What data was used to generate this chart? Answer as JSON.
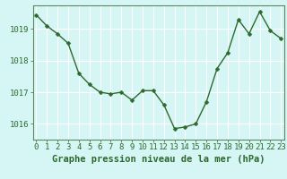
{
  "x": [
    0,
    1,
    2,
    3,
    4,
    5,
    6,
    7,
    8,
    9,
    10,
    11,
    12,
    13,
    14,
    15,
    16,
    17,
    18,
    19,
    20,
    21,
    22,
    23
  ],
  "y": [
    1019.45,
    1019.1,
    1018.85,
    1018.55,
    1017.6,
    1017.25,
    1017.0,
    1016.95,
    1017.0,
    1016.75,
    1017.05,
    1017.05,
    1016.6,
    1015.85,
    1015.9,
    1016.0,
    1016.7,
    1017.75,
    1018.25,
    1019.3,
    1018.85,
    1019.55,
    1018.95,
    1018.7
  ],
  "line_color": "#2d6a2d",
  "marker_color": "#2d6a2d",
  "bg_color": "#d6f5f5",
  "grid_color": "#ffffff",
  "axis_color": "#5a8a5a",
  "tick_color": "#2d6a2d",
  "xlabel": "Graphe pression niveau de la mer (hPa)",
  "xlabel_color": "#2d6a2d",
  "ylim": [
    1015.5,
    1019.75
  ],
  "yticks": [
    1016,
    1017,
    1018,
    1019
  ],
  "xticks": [
    0,
    1,
    2,
    3,
    4,
    5,
    6,
    7,
    8,
    9,
    10,
    11,
    12,
    13,
    14,
    15,
    16,
    17,
    18,
    19,
    20,
    21,
    22,
    23
  ],
  "marker_size": 2.5,
  "line_width": 1.0,
  "label_fontsize": 7.5,
  "tick_fontsize": 6.5
}
